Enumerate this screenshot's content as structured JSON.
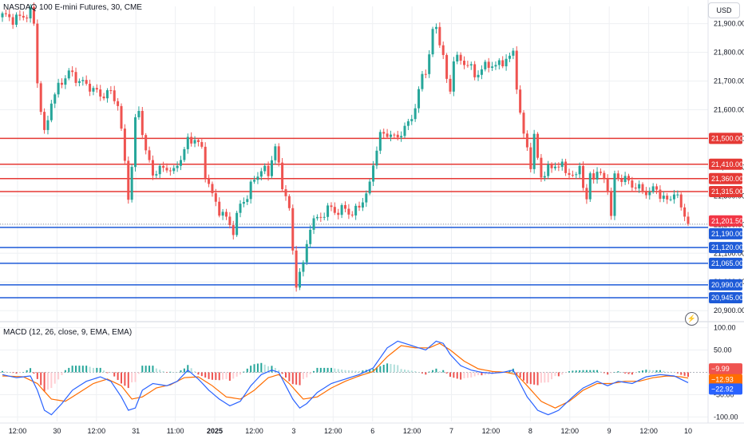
{
  "header": {
    "title": "NASDAQ 100 E-mini Futures, 30, CME"
  },
  "currency_button": {
    "label": "USD"
  },
  "macd_header": {
    "label": "MACD (12, 26, close, 9, EMA, EMA)"
  },
  "colors": {
    "up": "#26a69a",
    "down": "#ef5350",
    "resistance": "#e53935",
    "support": "#1e5bd8",
    "macd_line": "#2962ff",
    "signal_line": "#ff6d00",
    "grid": "#eef0f3"
  },
  "icons": {
    "alert": "lightning-icon"
  },
  "chart_data": [
    {
      "type": "candlestick",
      "ylim": [
        20870,
        21960
      ],
      "y_ticks": [
        20900,
        21000,
        21100,
        21200,
        21300,
        21400,
        21500,
        21600,
        21700,
        21800,
        21900
      ],
      "y_tick_labels": [
        "20,900.00",
        "21,000.00",
        "21,100.00",
        "21,200.00",
        "21,300.00",
        "21,400.00",
        "21,500.00",
        "21,600.00",
        "21,700.00",
        "21,800.00",
        "21,900.00"
      ],
      "x_tick_labels": [
        "12:00",
        "30",
        "12:00",
        "31",
        "11:00",
        "2025",
        "12:00",
        "3",
        "12:00",
        "6",
        "12:00",
        "7",
        "12:00",
        "8",
        "12:00",
        "9",
        "12:00",
        "10"
      ],
      "close_points": [
        [
          0,
          21930
        ],
        [
          3,
          21915
        ],
        [
          6,
          21925
        ],
        [
          8,
          21940
        ],
        [
          9,
          21900
        ],
        [
          10,
          21700
        ],
        [
          11,
          21600
        ],
        [
          12,
          21510
        ],
        [
          14,
          21630
        ],
        [
          17,
          21700
        ],
        [
          19,
          21730
        ],
        [
          22,
          21700
        ],
        [
          25,
          21680
        ],
        [
          28,
          21650
        ],
        [
          31,
          21660
        ],
        [
          33,
          21620
        ],
        [
          35,
          21420
        ],
        [
          36,
          21300
        ],
        [
          37,
          21400
        ],
        [
          38,
          21560
        ],
        [
          39,
          21600
        ],
        [
          41,
          21450
        ],
        [
          43,
          21380
        ],
        [
          45,
          21390
        ],
        [
          47,
          21400
        ],
        [
          49,
          21380
        ],
        [
          50,
          21410
        ],
        [
          52,
          21460
        ],
        [
          53,
          21490
        ],
        [
          55,
          21500
        ],
        [
          57,
          21460
        ],
        [
          58,
          21380
        ],
        [
          60,
          21300
        ],
        [
          62,
          21250
        ],
        [
          64,
          21220
        ],
        [
          65,
          21200
        ],
        [
          66,
          21180
        ],
        [
          68,
          21270
        ],
        [
          70,
          21300
        ],
        [
          72,
          21360
        ],
        [
          74,
          21390
        ],
        [
          76,
          21380
        ],
        [
          77,
          21430
        ],
        [
          78,
          21470
        ],
        [
          79,
          21400
        ],
        [
          80,
          21340
        ],
        [
          81,
          21300
        ],
        [
          82,
          21250
        ],
        [
          83,
          21100
        ],
        [
          84,
          21000
        ],
        [
          86,
          21060
        ],
        [
          88,
          21200
        ],
        [
          90,
          21220
        ],
        [
          92,
          21240
        ],
        [
          94,
          21260
        ],
        [
          96,
          21240
        ],
        [
          98,
          21260
        ],
        [
          100,
          21230
        ],
        [
          102,
          21270
        ],
        [
          104,
          21300
        ],
        [
          105,
          21340
        ],
        [
          106,
          21420
        ],
        [
          107,
          21460
        ],
        [
          108,
          21510
        ],
        [
          110,
          21520
        ],
        [
          112,
          21500
        ],
        [
          114,
          21520
        ],
        [
          116,
          21550
        ],
        [
          118,
          21610
        ],
        [
          119,
          21660
        ],
        [
          120,
          21720
        ],
        [
          121,
          21740
        ],
        [
          122,
          21790
        ],
        [
          123,
          21870
        ],
        [
          124,
          21890
        ],
        [
          125,
          21840
        ],
        [
          126,
          21780
        ],
        [
          127,
          21700
        ],
        [
          128,
          21670
        ],
        [
          129,
          21780
        ],
        [
          131,
          21770
        ],
        [
          133,
          21760
        ],
        [
          135,
          21720
        ],
        [
          137,
          21740
        ],
        [
          139,
          21760
        ],
        [
          141,
          21750
        ],
        [
          143,
          21770
        ],
        [
          145,
          21780
        ],
        [
          146,
          21800
        ],
        [
          147,
          21690
        ],
        [
          148,
          21580
        ],
        [
          149,
          21510
        ],
        [
          150,
          21470
        ],
        [
          151,
          21410
        ],
        [
          152,
          21500
        ],
        [
          153,
          21430
        ],
        [
          154,
          21370
        ],
        [
          156,
          21390
        ],
        [
          158,
          21410
        ],
        [
          160,
          21400
        ],
        [
          162,
          21380
        ],
        [
          164,
          21360
        ],
        [
          165,
          21420
        ],
        [
          166,
          21330
        ],
        [
          167,
          21280
        ],
        [
          168,
          21370
        ],
        [
          170,
          21380
        ],
        [
          172,
          21360
        ],
        [
          173,
          21330
        ],
        [
          174,
          21220
        ],
        [
          175,
          21370
        ],
        [
          177,
          21360
        ],
        [
          179,
          21350
        ],
        [
          181,
          21330
        ],
        [
          183,
          21320
        ],
        [
          185,
          21310
        ],
        [
          187,
          21330
        ],
        [
          188,
          21300
        ],
        [
          189,
          21290
        ],
        [
          190,
          21280
        ],
        [
          191,
          21300
        ],
        [
          192,
          21310
        ],
        [
          193,
          21290
        ],
        [
          194,
          21260
        ],
        [
          195,
          21240
        ],
        [
          196,
          21201.5
        ]
      ],
      "levels": [
        {
          "value": 21500,
          "label": "21,500.00",
          "kind": "resistance"
        },
        {
          "value": 21410,
          "label": "21,410.00",
          "kind": "resistance"
        },
        {
          "value": 21360,
          "label": "21,360.00",
          "kind": "resistance"
        },
        {
          "value": 21315,
          "label": "21,315.00",
          "kind": "resistance"
        },
        {
          "value": 21190,
          "label": "21,190.00",
          "kind": "support"
        },
        {
          "value": 21120,
          "label": "21,120.00",
          "kind": "support"
        },
        {
          "value": 21065,
          "label": "21,065.00",
          "kind": "support"
        },
        {
          "value": 20990,
          "label": "20,990.00",
          "kind": "support"
        },
        {
          "value": 20945,
          "label": "20,945.00",
          "kind": "support"
        }
      ],
      "last_price": {
        "value": 21201.5,
        "label": "21,201.50"
      }
    },
    {
      "type": "macd",
      "ylim": [
        -110,
        110
      ],
      "y_ticks": [
        100,
        50,
        -50,
        -100
      ],
      "y_tick_labels": [
        "100.00",
        "50.00",
        "-50.00",
        "-100.00"
      ],
      "macd_points": [
        [
          0,
          -5
        ],
        [
          4,
          -12
        ],
        [
          8,
          -8
        ],
        [
          10,
          -40
        ],
        [
          12,
          -85
        ],
        [
          14,
          -95
        ],
        [
          17,
          -70
        ],
        [
          20,
          -40
        ],
        [
          24,
          -20
        ],
        [
          28,
          -10
        ],
        [
          31,
          -20
        ],
        [
          34,
          -55
        ],
        [
          36,
          -85
        ],
        [
          38,
          -80
        ],
        [
          40,
          -40
        ],
        [
          43,
          -25
        ],
        [
          47,
          -30
        ],
        [
          50,
          -20
        ],
        [
          53,
          5
        ],
        [
          56,
          -15
        ],
        [
          59,
          -40
        ],
        [
          62,
          -60
        ],
        [
          65,
          -75
        ],
        [
          68,
          -65
        ],
        [
          71,
          -30
        ],
        [
          74,
          -5
        ],
        [
          77,
          5
        ],
        [
          79,
          0
        ],
        [
          81,
          -30
        ],
        [
          83,
          -60
        ],
        [
          85,
          -80
        ],
        [
          87,
          -70
        ],
        [
          90,
          -45
        ],
        [
          94,
          -25
        ],
        [
          98,
          -15
        ],
        [
          102,
          -5
        ],
        [
          106,
          10
        ],
        [
          110,
          55
        ],
        [
          113,
          70
        ],
        [
          117,
          60
        ],
        [
          121,
          50
        ],
        [
          124,
          70
        ],
        [
          126,
          65
        ],
        [
          128,
          40
        ],
        [
          131,
          15
        ],
        [
          134,
          5
        ],
        [
          137,
          0
        ],
        [
          140,
          -2
        ],
        [
          143,
          0
        ],
        [
          146,
          5
        ],
        [
          148,
          -25
        ],
        [
          150,
          -55
        ],
        [
          153,
          -85
        ],
        [
          156,
          -95
        ],
        [
          159,
          -85
        ],
        [
          163,
          -55
        ],
        [
          166,
          -35
        ],
        [
          170,
          -20
        ],
        [
          173,
          -30
        ],
        [
          176,
          -20
        ],
        [
          180,
          -25
        ],
        [
          184,
          -10
        ],
        [
          188,
          -5
        ],
        [
          192,
          -8
        ],
        [
          196,
          -23
        ]
      ],
      "signal_points": [
        [
          0,
          -8
        ],
        [
          6,
          -10
        ],
        [
          10,
          -25
        ],
        [
          14,
          -60
        ],
        [
          18,
          -65
        ],
        [
          22,
          -45
        ],
        [
          26,
          -25
        ],
        [
          30,
          -15
        ],
        [
          34,
          -30
        ],
        [
          37,
          -60
        ],
        [
          40,
          -55
        ],
        [
          44,
          -35
        ],
        [
          48,
          -28
        ],
        [
          52,
          -12
        ],
        [
          56,
          -10
        ],
        [
          60,
          -30
        ],
        [
          64,
          -55
        ],
        [
          68,
          -60
        ],
        [
          72,
          -40
        ],
        [
          76,
          -12
        ],
        [
          79,
          -5
        ],
        [
          82,
          -25
        ],
        [
          86,
          -60
        ],
        [
          90,
          -55
        ],
        [
          94,
          -35
        ],
        [
          98,
          -20
        ],
        [
          102,
          -8
        ],
        [
          106,
          2
        ],
        [
          110,
          35
        ],
        [
          114,
          60
        ],
        [
          118,
          55
        ],
        [
          122,
          55
        ],
        [
          125,
          65
        ],
        [
          128,
          50
        ],
        [
          132,
          25
        ],
        [
          136,
          8
        ],
        [
          140,
          2
        ],
        [
          144,
          0
        ],
        [
          147,
          -5
        ],
        [
          150,
          -30
        ],
        [
          154,
          -65
        ],
        [
          158,
          -80
        ],
        [
          162,
          -65
        ],
        [
          166,
          -40
        ],
        [
          170,
          -25
        ],
        [
          174,
          -25
        ],
        [
          178,
          -20
        ],
        [
          182,
          -20
        ],
        [
          186,
          -12
        ],
        [
          190,
          -8
        ],
        [
          194,
          -10
        ],
        [
          196,
          -12.93
        ]
      ],
      "macd_value": {
        "value": -22.92,
        "label": "−22.92"
      },
      "signal_value": {
        "value": -12.93,
        "label": "−12.93"
      },
      "histogram_value": {
        "value": -9.99,
        "label": "−9.99"
      }
    }
  ]
}
